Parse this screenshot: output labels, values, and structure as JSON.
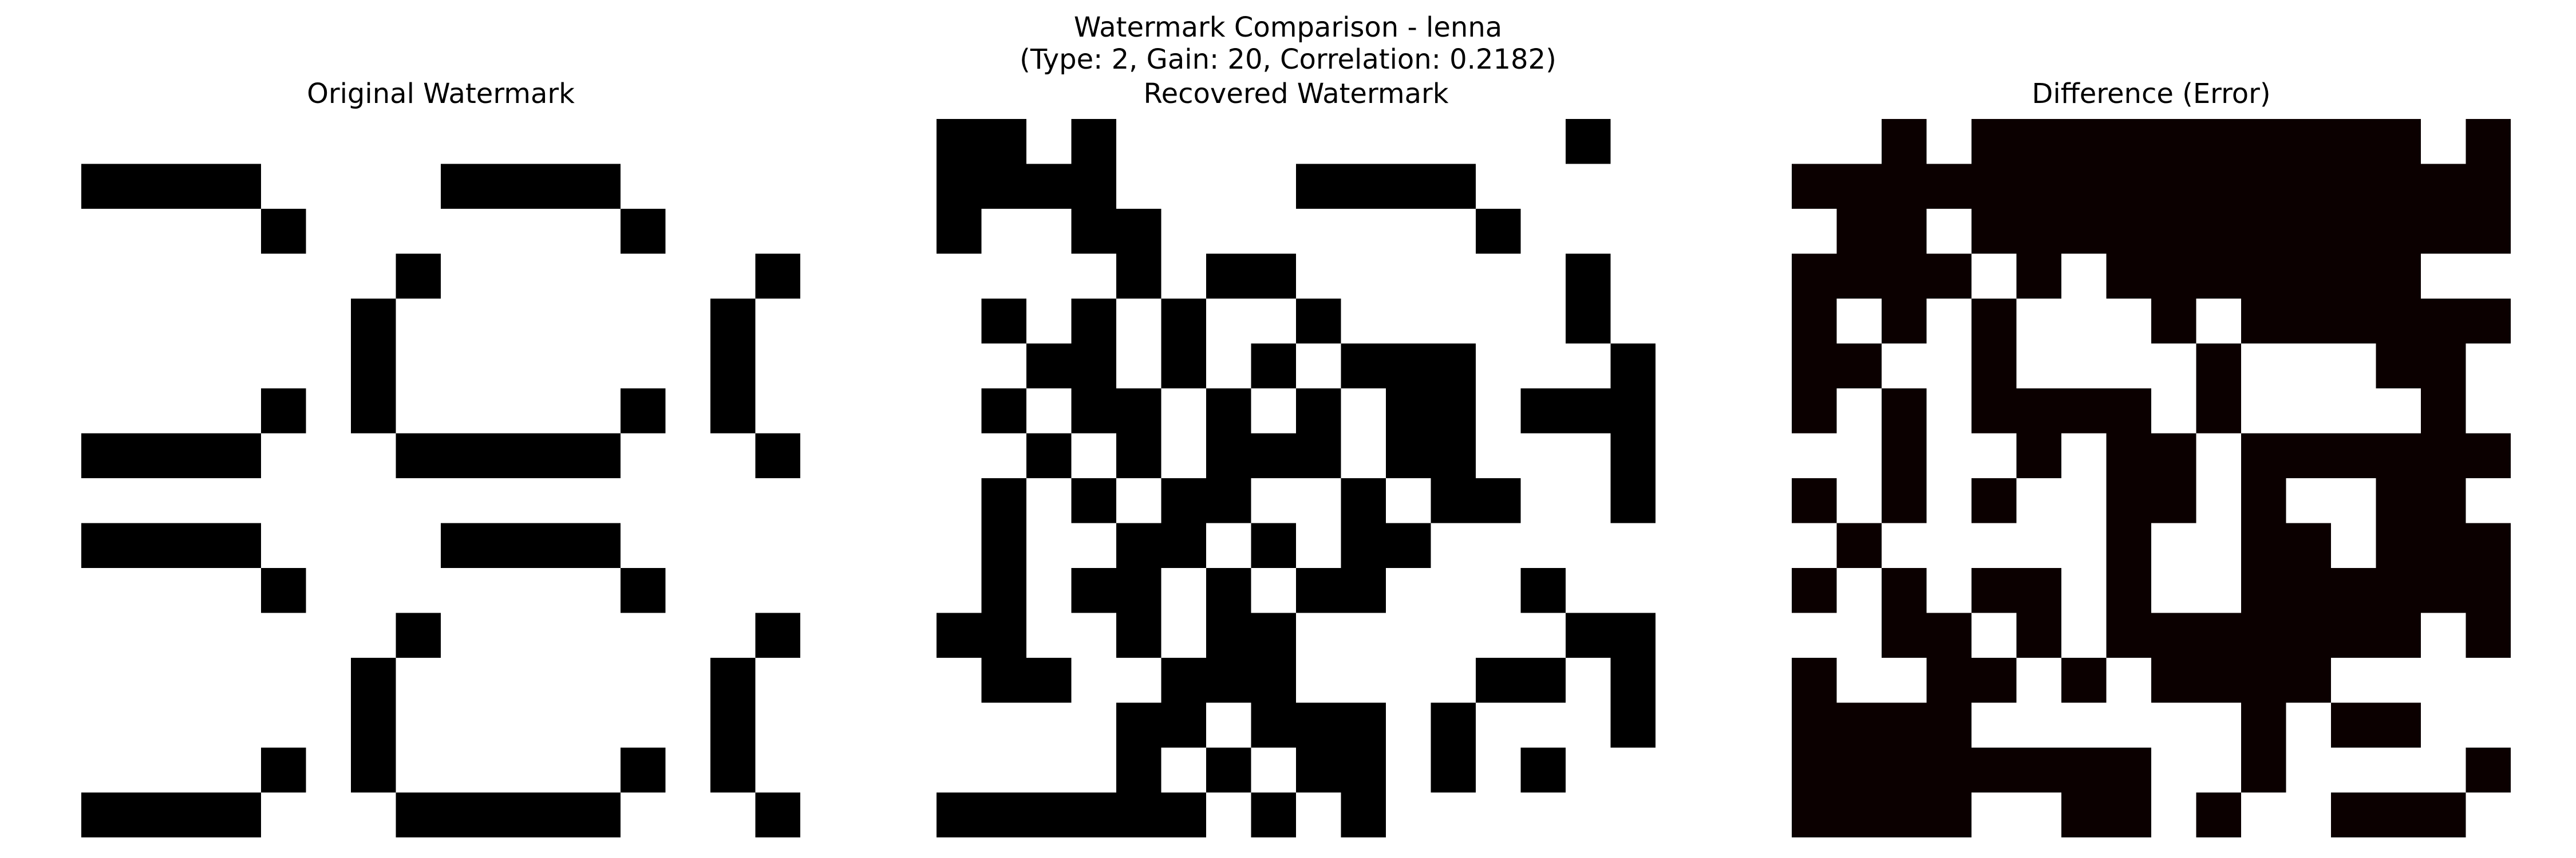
{
  "figure": {
    "suptitle_line1": "Watermark Comparison - lenna",
    "suptitle_line2": "(Type: 2, Gain: 20, Correlation: 0.2182)"
  },
  "chart_data": [
    {
      "type": "heatmap",
      "title": "Original Watermark",
      "grid": false,
      "colors": {
        "1": "#000000",
        "0": "#ffffff"
      },
      "values": [
        [
          0,
          0,
          0,
          0,
          0,
          0,
          0,
          0,
          0,
          0,
          0,
          0,
          0,
          0,
          0,
          0
        ],
        [
          1,
          1,
          1,
          1,
          0,
          0,
          0,
          0,
          1,
          1,
          1,
          1,
          0,
          0,
          0,
          0
        ],
        [
          0,
          0,
          0,
          0,
          1,
          0,
          0,
          0,
          0,
          0,
          0,
          0,
          1,
          0,
          0,
          0
        ],
        [
          0,
          0,
          0,
          0,
          0,
          0,
          0,
          1,
          0,
          0,
          0,
          0,
          0,
          0,
          0,
          1
        ],
        [
          0,
          0,
          0,
          0,
          0,
          0,
          1,
          0,
          0,
          0,
          0,
          0,
          0,
          0,
          1,
          0
        ],
        [
          0,
          0,
          0,
          0,
          0,
          0,
          1,
          0,
          0,
          0,
          0,
          0,
          0,
          0,
          1,
          0
        ],
        [
          0,
          0,
          0,
          0,
          1,
          0,
          1,
          0,
          0,
          0,
          0,
          0,
          1,
          0,
          1,
          0
        ],
        [
          1,
          1,
          1,
          1,
          0,
          0,
          0,
          1,
          1,
          1,
          1,
          1,
          0,
          0,
          0,
          1
        ],
        [
          0,
          0,
          0,
          0,
          0,
          0,
          0,
          0,
          0,
          0,
          0,
          0,
          0,
          0,
          0,
          0
        ],
        [
          1,
          1,
          1,
          1,
          0,
          0,
          0,
          0,
          1,
          1,
          1,
          1,
          0,
          0,
          0,
          0
        ],
        [
          0,
          0,
          0,
          0,
          1,
          0,
          0,
          0,
          0,
          0,
          0,
          0,
          1,
          0,
          0,
          0
        ],
        [
          0,
          0,
          0,
          0,
          0,
          0,
          0,
          1,
          0,
          0,
          0,
          0,
          0,
          0,
          0,
          1
        ],
        [
          0,
          0,
          0,
          0,
          0,
          0,
          1,
          0,
          0,
          0,
          0,
          0,
          0,
          0,
          1,
          0
        ],
        [
          0,
          0,
          0,
          0,
          0,
          0,
          1,
          0,
          0,
          0,
          0,
          0,
          0,
          0,
          1,
          0
        ],
        [
          0,
          0,
          0,
          0,
          1,
          0,
          1,
          0,
          0,
          0,
          0,
          0,
          1,
          0,
          1,
          0
        ],
        [
          1,
          1,
          1,
          1,
          0,
          0,
          0,
          1,
          1,
          1,
          1,
          1,
          0,
          0,
          0,
          1
        ]
      ]
    },
    {
      "type": "heatmap",
      "title": "Recovered Watermark",
      "grid": false,
      "colors": {
        "1": "#000000",
        "0": "#ffffff"
      },
      "values": [
        [
          1,
          1,
          0,
          1,
          0,
          0,
          0,
          0,
          0,
          0,
          0,
          0,
          0,
          0,
          1,
          0
        ],
        [
          1,
          1,
          1,
          1,
          0,
          0,
          0,
          0,
          1,
          1,
          1,
          1,
          0,
          0,
          0,
          0
        ],
        [
          1,
          0,
          0,
          1,
          1,
          0,
          0,
          0,
          0,
          0,
          0,
          0,
          1,
          0,
          0,
          0
        ],
        [
          0,
          0,
          0,
          0,
          1,
          0,
          1,
          1,
          0,
          0,
          0,
          0,
          0,
          0,
          1,
          0
        ],
        [
          0,
          1,
          0,
          1,
          0,
          1,
          0,
          0,
          1,
          0,
          0,
          0,
          0,
          0,
          1,
          0
        ],
        [
          0,
          0,
          1,
          1,
          0,
          1,
          0,
          1,
          0,
          1,
          1,
          1,
          0,
          0,
          0,
          1
        ],
        [
          0,
          1,
          0,
          1,
          1,
          0,
          1,
          0,
          1,
          0,
          1,
          1,
          0,
          1,
          1,
          1
        ],
        [
          0,
          0,
          1,
          0,
          1,
          0,
          1,
          1,
          1,
          0,
          1,
          1,
          0,
          0,
          0,
          1
        ],
        [
          0,
          1,
          0,
          1,
          0,
          1,
          1,
          0,
          0,
          1,
          0,
          1,
          1,
          0,
          0,
          1
        ],
        [
          0,
          1,
          0,
          0,
          1,
          1,
          0,
          1,
          0,
          1,
          1,
          0,
          0,
          0,
          0,
          0
        ],
        [
          0,
          1,
          0,
          1,
          1,
          0,
          1,
          0,
          1,
          1,
          0,
          0,
          0,
          1,
          0,
          0
        ],
        [
          1,
          1,
          0,
          0,
          1,
          0,
          1,
          1,
          0,
          0,
          0,
          0,
          0,
          0,
          1,
          1
        ],
        [
          0,
          1,
          1,
          0,
          0,
          1,
          1,
          1,
          0,
          0,
          0,
          0,
          1,
          1,
          0,
          1
        ],
        [
          0,
          0,
          0,
          0,
          1,
          1,
          0,
          1,
          1,
          1,
          0,
          1,
          0,
          0,
          0,
          1
        ],
        [
          0,
          0,
          0,
          0,
          1,
          0,
          1,
          0,
          1,
          1,
          0,
          1,
          0,
          1,
          0,
          0
        ],
        [
          1,
          1,
          1,
          1,
          1,
          1,
          0,
          1,
          0,
          1,
          0,
          0,
          0,
          0,
          0,
          0
        ]
      ]
    },
    {
      "type": "heatmap",
      "title": "Difference (Error)",
      "grid": false,
      "colors": {
        "1": "#0b0000",
        "0": "#ffffff"
      },
      "values": [
        [
          0,
          0,
          1,
          0,
          1,
          1,
          1,
          1,
          1,
          1,
          1,
          1,
          1,
          1,
          0,
          1
        ],
        [
          1,
          1,
          1,
          1,
          1,
          1,
          1,
          1,
          1,
          1,
          1,
          1,
          1,
          1,
          1,
          1
        ],
        [
          0,
          1,
          1,
          0,
          1,
          1,
          1,
          1,
          1,
          1,
          1,
          1,
          1,
          1,
          1,
          1
        ],
        [
          1,
          1,
          1,
          1,
          0,
          1,
          0,
          1,
          1,
          1,
          1,
          1,
          1,
          1,
          0,
          0
        ],
        [
          1,
          0,
          1,
          0,
          1,
          0,
          0,
          0,
          1,
          0,
          1,
          1,
          1,
          1,
          1,
          1
        ],
        [
          1,
          1,
          0,
          0,
          1,
          0,
          0,
          0,
          0,
          1,
          0,
          0,
          0,
          1,
          1,
          0
        ],
        [
          1,
          0,
          1,
          0,
          1,
          1,
          1,
          1,
          0,
          1,
          0,
          0,
          0,
          0,
          1,
          0
        ],
        [
          0,
          0,
          1,
          0,
          0,
          1,
          0,
          1,
          1,
          0,
          1,
          1,
          1,
          1,
          1,
          1
        ],
        [
          1,
          0,
          1,
          0,
          1,
          0,
          0,
          1,
          1,
          0,
          1,
          0,
          0,
          1,
          1,
          0
        ],
        [
          0,
          1,
          0,
          0,
          0,
          0,
          0,
          1,
          0,
          0,
          1,
          1,
          0,
          1,
          1,
          1
        ],
        [
          1,
          0,
          1,
          0,
          1,
          1,
          0,
          1,
          0,
          0,
          1,
          1,
          1,
          1,
          1,
          1
        ],
        [
          0,
          0,
          1,
          1,
          0,
          1,
          0,
          1,
          1,
          1,
          1,
          1,
          1,
          1,
          0,
          1
        ],
        [
          1,
          0,
          0,
          1,
          1,
          0,
          1,
          0,
          1,
          1,
          1,
          1,
          0,
          0,
          0,
          0
        ],
        [
          1,
          1,
          1,
          1,
          0,
          0,
          0,
          0,
          0,
          0,
          1,
          0,
          1,
          1,
          0,
          0
        ],
        [
          1,
          1,
          1,
          1,
          1,
          1,
          1,
          1,
          0,
          0,
          1,
          0,
          0,
          0,
          0,
          1
        ],
        [
          1,
          1,
          1,
          1,
          0,
          0,
          1,
          1,
          0,
          1,
          0,
          0,
          1,
          1,
          1,
          0
        ]
      ]
    }
  ]
}
